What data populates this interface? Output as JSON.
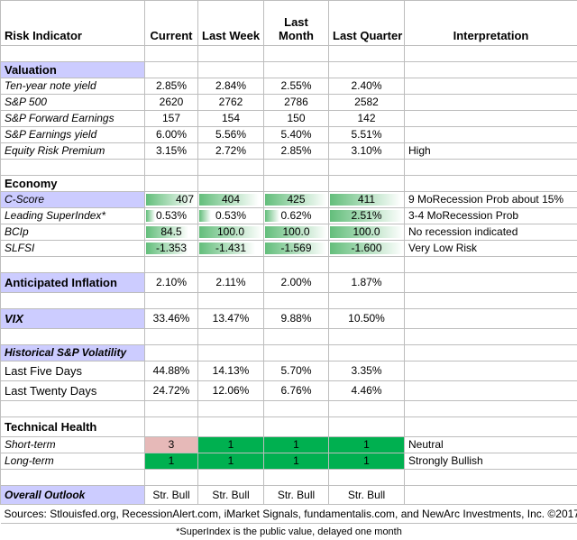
{
  "headers": {
    "indicator": "Risk Indicator",
    "current": "Current",
    "last_week": "Last Week",
    "last_month": "Last Month",
    "last_quarter": "Last Quarter",
    "interpretation": "Interpretation"
  },
  "valuation": {
    "title": "Valuation",
    "rows": [
      {
        "label": "Ten-year note yield",
        "current": "2.85%",
        "week": "2.84%",
        "month": "2.55%",
        "quarter": "2.40%",
        "interp": ""
      },
      {
        "label": "S&P 500",
        "current": "2620",
        "week": "2762",
        "month": "2786",
        "quarter": "2582",
        "interp": ""
      },
      {
        "label": "S&P Forward Earnings",
        "current": "157",
        "week": "154",
        "month": "150",
        "quarter": "142",
        "interp": ""
      },
      {
        "label": "S&P Earnings yield",
        "current": "6.00%",
        "week": "5.56%",
        "month": "5.40%",
        "quarter": "5.51%",
        "interp": ""
      },
      {
        "label": "Equity Risk Premium",
        "current": "3.15%",
        "week": "2.72%",
        "month": "2.85%",
        "quarter": "3.10%",
        "interp": "High"
      }
    ]
  },
  "economy": {
    "title": "Economy",
    "rows": [
      {
        "label": "C-Score",
        "current": "407",
        "week": "404",
        "month": "425",
        "quarter": "411",
        "interp": "9 MoRecession Prob about 15%"
      },
      {
        "label": "Leading SuperIndex*",
        "current": "0.53%",
        "week": "0.53%",
        "month": "0.62%",
        "quarter": "2.51%",
        "interp": "3-4 MoRecession Prob"
      },
      {
        "label": "BCIp",
        "current": "84.5",
        "week": "100.0",
        "month": "100.0",
        "quarter": "100.0",
        "interp": "No recession indicated"
      },
      {
        "label": "SLFSI",
        "current": "-1.353",
        "week": "-1.431",
        "month": "-1.569",
        "quarter": "-1.600",
        "interp": "Very Low Risk"
      }
    ]
  },
  "inflation": {
    "label": "Anticipated Inflation",
    "current": "2.10%",
    "week": "2.11%",
    "month": "2.00%",
    "quarter": "1.87%"
  },
  "vix": {
    "label": "VIX",
    "current": "33.46%",
    "week": "13.47%",
    "month": "9.88%",
    "quarter": "10.50%"
  },
  "volatility": {
    "title": "Historical  S&P Volatility",
    "rows": [
      {
        "label": "Last Five Days",
        "current": "44.88%",
        "week": "14.13%",
        "month": "5.70%",
        "quarter": "3.35%"
      },
      {
        "label": "Last Twenty Days",
        "current": "24.72%",
        "week": "12.06%",
        "month": "6.76%",
        "quarter": "4.46%"
      }
    ]
  },
  "technical": {
    "title": "Technical Health",
    "rows": [
      {
        "label": "Short-term",
        "current": "3",
        "week": "1",
        "month": "1",
        "quarter": "1",
        "interp": "Neutral"
      },
      {
        "label": "Long-term",
        "current": "1",
        "week": "1",
        "month": "1",
        "quarter": "1",
        "interp": "Strongly Bullish"
      }
    ]
  },
  "outlook": {
    "label": "Overall Outlook",
    "current": "Str. Bull",
    "week": "Str. Bull",
    "month": "Str. Bull",
    "quarter": "Str. Bull"
  },
  "sources": "Sources: Stlouisfed.org, RecessionAlert.com, iMarket Signals, fundamentalis.com, and NewArc Investments, Inc. ©2017",
  "footnote": "*SuperIndex is the public value, delayed one month",
  "colors": {
    "section_bg": "#ccccff",
    "bullish_green": "#00b050",
    "neutral_pink": "#e6b9b8",
    "databar_green": "#63be7b"
  },
  "databar_fractions": {
    "c_score": [
      0.96,
      0.95,
      1.0,
      0.97
    ],
    "superindex": [
      0.21,
      0.21,
      0.25,
      1.0
    ],
    "bcip": [
      0.84,
      1.0,
      1.0,
      1.0
    ],
    "slfsi": [
      0.85,
      0.89,
      0.98,
      1.0
    ]
  }
}
